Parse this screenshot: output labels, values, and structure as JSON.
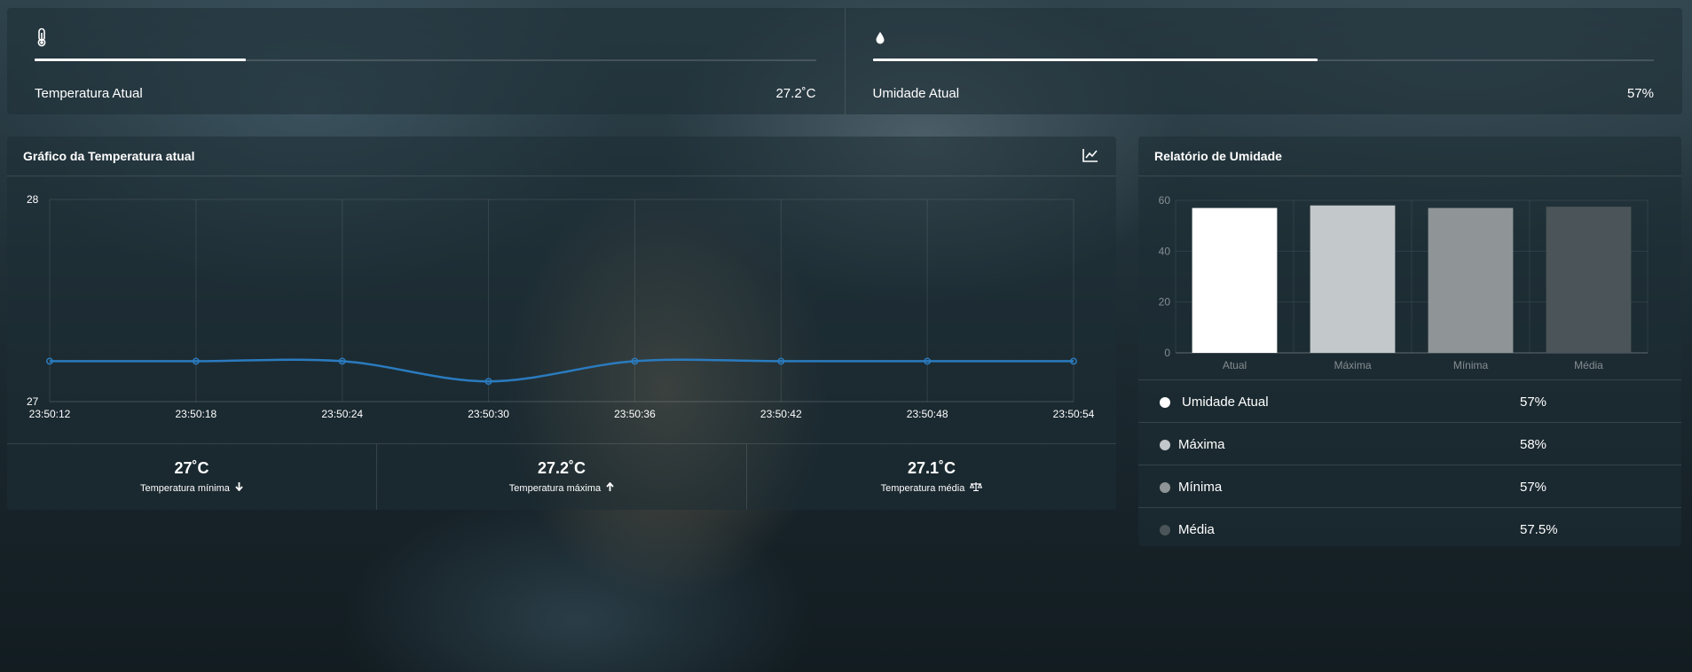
{
  "stats": {
    "temperature": {
      "icon": "thermometer-icon",
      "label": "Temperatura Atual",
      "value": "27.2˚C",
      "progress": 0.27
    },
    "humidity": {
      "icon": "water-drop-icon",
      "label": "Umidade Atual",
      "value": "57%",
      "progress": 0.57
    }
  },
  "temperature_chart": {
    "title": "Gráfico da Temperatura atual",
    "header_icon": "line-chart-icon",
    "line_color": "#2a7bbf",
    "summary": [
      {
        "value": "27˚C",
        "label": "Temperatura mínima",
        "icon": "arrow-down-icon"
      },
      {
        "value": "27.2˚C",
        "label": "Temperatura máxima",
        "icon": "arrow-up-icon"
      },
      {
        "value": "27.1˚C",
        "label": "Temperatura média",
        "icon": "balance-scale-icon"
      }
    ]
  },
  "humidity_report": {
    "title": "Relatório de Umidade",
    "items": [
      {
        "name": "Umidade Atual",
        "value": "57%",
        "color": "#ffffff"
      },
      {
        "name": "Máxima",
        "value": "58%",
        "color": "#c3c8ca"
      },
      {
        "name": "Mínima",
        "value": "57%",
        "color": "#8f9597"
      },
      {
        "name": "Média",
        "value": "57.5%",
        "color": "#4b5458"
      }
    ]
  },
  "chart_data": [
    {
      "type": "line",
      "x": [
        "23:50:12",
        "23:50:18",
        "23:50:24",
        "23:50:30",
        "23:50:36",
        "23:50:42",
        "23:50:48",
        "23:50:54"
      ],
      "series": [
        {
          "values": [
            27.2,
            27.2,
            27.2,
            27.1,
            27.2,
            27.2,
            27.2,
            27.2
          ]
        }
      ],
      "ylim": [
        27,
        28
      ],
      "yticks": [
        "27",
        "28"
      ],
      "grid": true
    },
    {
      "type": "bar",
      "categories": [
        "Atual",
        "Máxima",
        "Mínima",
        "Média"
      ],
      "values": [
        57,
        58,
        57,
        57.5
      ],
      "ylim": [
        0,
        60
      ],
      "yticks": [
        "0",
        "20",
        "40",
        "60"
      ],
      "colors": [
        "#ffffff",
        "#c3c8ca",
        "#8f9597",
        "#4b5458"
      ],
      "grid": true
    }
  ]
}
